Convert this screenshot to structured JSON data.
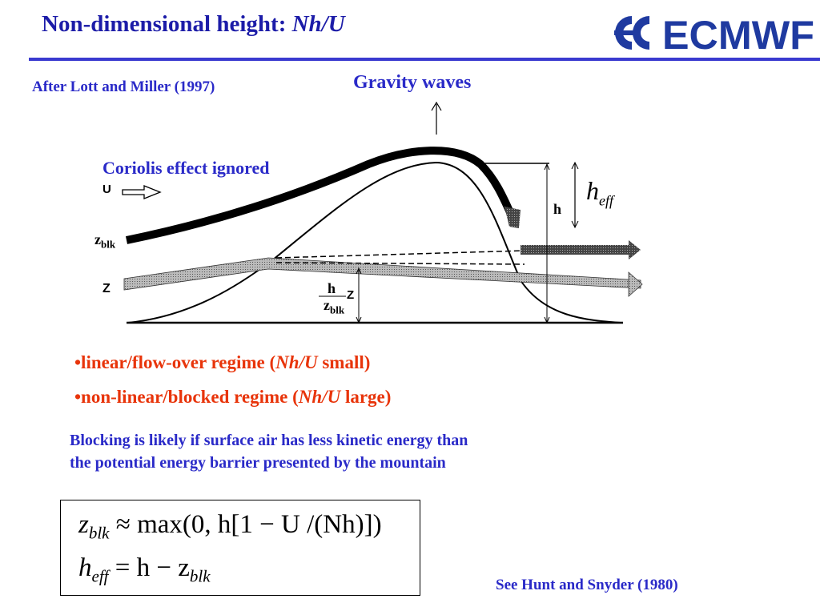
{
  "title": {
    "prefix": "Non-dimensional height: ",
    "italic": "Nh/U"
  },
  "logo": {
    "text": "ECMWF",
    "color": "#1f3aa0"
  },
  "citation": "After Lott and Miller (1997)",
  "diagram": {
    "gravity_waves": "Gravity waves",
    "coriolis": "Coriolis effect ignored",
    "u_label": "U",
    "zblk_label": "z",
    "zblk_sub": "blk",
    "z_label": "Z",
    "h_label": "h",
    "heff_h": "h",
    "heff_sub": "eff",
    "frac_num": "h",
    "frac_den": "z",
    "frac_den_sub": "blk",
    "frac_z": "Z"
  },
  "bullets": [
    {
      "pre": "•linear/flow-over regime (",
      "italic": "Nh/U",
      "post": " small)"
    },
    {
      "pre": "•non-linear/blocked regime (",
      "italic": "Nh/U",
      "post": " large)"
    }
  ],
  "blocking": [
    "Blocking is likely if surface air has less kinetic energy than",
    "the potential energy barrier presented by the mountain"
  ],
  "equations": {
    "eq1": {
      "lhs": "z",
      "lhs_sub": "blk",
      "rhs": "≈ max(0, h[1 − U /(Nh)])"
    },
    "eq2": {
      "lhs": "h",
      "lhs_sub": "eff",
      "rhs": "= h − z",
      "rhs_sub": "blk"
    }
  },
  "reference": "See Hunt and Snyder (1980)"
}
